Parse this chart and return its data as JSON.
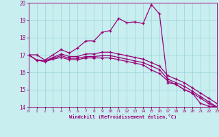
{
  "title": "",
  "xlabel": "Windchill (Refroidissement éolien,°C)",
  "bg_color": "#c8eef0",
  "grid_color": "#a0d8dc",
  "line_color": "#990077",
  "xlim": [
    0,
    23
  ],
  "ylim": [
    14,
    20
  ],
  "xticks": [
    0,
    1,
    2,
    3,
    4,
    5,
    6,
    7,
    8,
    9,
    10,
    11,
    12,
    13,
    14,
    15,
    16,
    17,
    18,
    19,
    20,
    21,
    22,
    23
  ],
  "yticks": [
    14,
    15,
    16,
    17,
    18,
    19,
    20
  ],
  "series": [
    [
      17.0,
      17.0,
      16.7,
      17.0,
      17.3,
      17.1,
      17.4,
      17.8,
      17.8,
      18.3,
      18.4,
      19.1,
      18.85,
      18.9,
      18.8,
      19.9,
      19.35,
      15.4,
      15.3,
      15.0,
      14.8,
      14.2,
      14.05,
      14.0
    ],
    [
      17.0,
      16.7,
      16.65,
      16.85,
      17.05,
      16.9,
      16.9,
      17.05,
      17.05,
      17.15,
      17.15,
      17.05,
      16.95,
      16.85,
      16.75,
      16.55,
      16.35,
      15.8,
      15.6,
      15.4,
      15.1,
      14.8,
      14.5,
      14.2
    ],
    [
      17.0,
      16.7,
      16.65,
      16.8,
      16.95,
      16.8,
      16.8,
      16.9,
      16.9,
      16.95,
      16.95,
      16.85,
      16.75,
      16.65,
      16.55,
      16.35,
      16.15,
      15.6,
      15.4,
      15.2,
      14.9,
      14.6,
      14.3,
      14.0
    ],
    [
      17.0,
      16.7,
      16.6,
      16.75,
      16.85,
      16.72,
      16.72,
      16.82,
      16.82,
      16.82,
      16.82,
      16.72,
      16.62,
      16.52,
      16.42,
      16.12,
      15.92,
      15.5,
      15.3,
      15.0,
      14.8,
      14.5,
      14.2,
      14.0
    ]
  ]
}
